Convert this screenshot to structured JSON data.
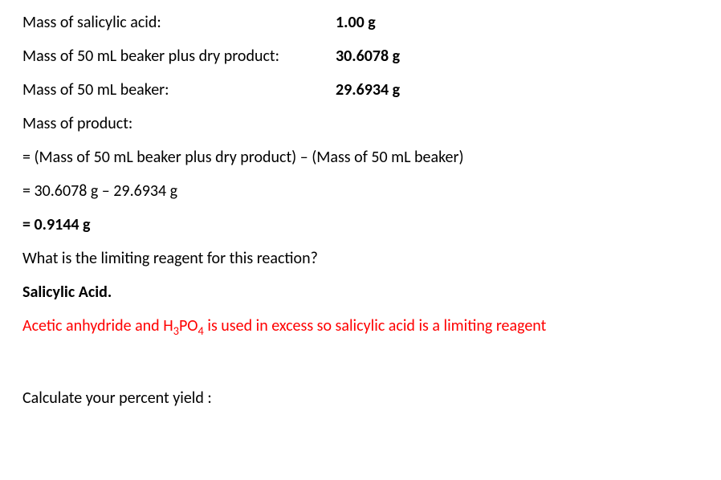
{
  "rows": [
    {
      "label": "Mass of salicylic acid:",
      "value": "1.00 g"
    },
    {
      "label": "Mass of 50 mL beaker plus dry product:",
      "value": "30.6078 g"
    },
    {
      "label": "Mass of 50 mL beaker:",
      "value": "29.6934 g"
    }
  ],
  "calc": {
    "heading": "Mass of product:",
    "formula": "= (Mass of 50 mL beaker plus dry product) – (Mass of 50 mL beaker)",
    "substitution": "= 30.6078 g – 29.6934 g",
    "result": "= 0.9144 g"
  },
  "question1": "What is the limiting reagent for this reaction?",
  "answer1": "Salicylic Acid.",
  "explanation_parts": {
    "p1": "Acetic anhydride and H",
    "sub1": "3",
    "p2": "PO",
    "sub2": "4",
    "p3": " is used in excess so salicylic acid is a limiting reagent"
  },
  "question2": "Calculate your percent yield :",
  "colors": {
    "text": "#000000",
    "highlight": "#ff0000",
    "background": "#ffffff"
  },
  "font": {
    "family": "Calibri",
    "size_pt": 15,
    "bold_weight": 700
  }
}
